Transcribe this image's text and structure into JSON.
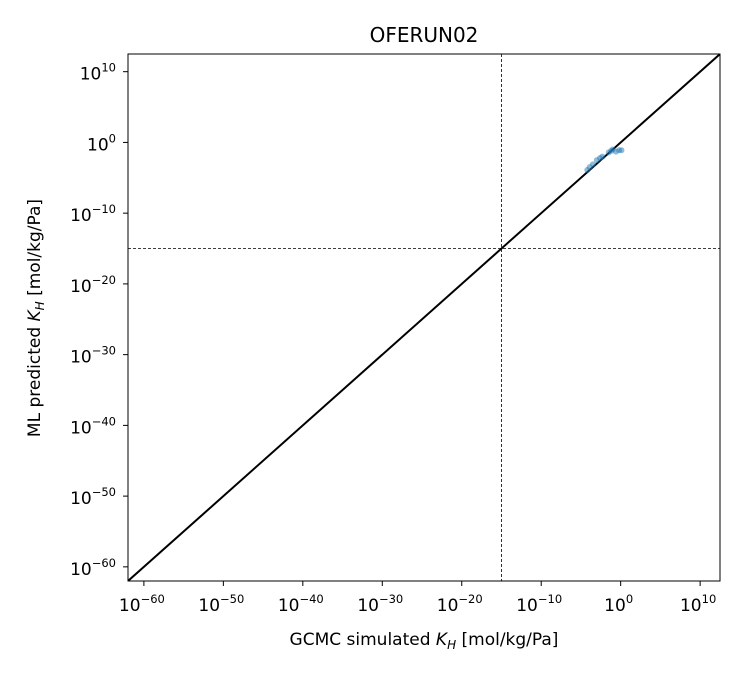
{
  "chart_data": {
    "type": "scatter",
    "title": "OFERUN02",
    "xlabel": {
      "prefix": "GCMC simulated ",
      "symbol": "K",
      "subscript": "H",
      "suffix": " [mol/kg/Pa]"
    },
    "ylabel": {
      "prefix": "ML predicted ",
      "symbol": "K",
      "subscript": "H",
      "suffix": " [mol/kg/Pa]"
    },
    "x_scale": "log",
    "y_scale": "log",
    "xlim_exponent": [
      -62,
      12.5
    ],
    "ylim_exponent": [
      -62,
      12.5
    ],
    "x_ticks": [
      {
        "base": "10",
        "exp": "−60"
      },
      {
        "base": "10",
        "exp": "−50"
      },
      {
        "base": "10",
        "exp": "−40"
      },
      {
        "base": "10",
        "exp": "−30"
      },
      {
        "base": "10",
        "exp": "−20"
      },
      {
        "base": "10",
        "exp": "−10"
      },
      {
        "base": "10",
        "exp": "0"
      },
      {
        "base": "10",
        "exp": "10"
      }
    ],
    "y_ticks": [
      {
        "base": "10",
        "exp": "−60"
      },
      {
        "base": "10",
        "exp": "−50"
      },
      {
        "base": "10",
        "exp": "−40"
      },
      {
        "base": "10",
        "exp": "−30"
      },
      {
        "base": "10",
        "exp": "−20"
      },
      {
        "base": "10",
        "exp": "−10"
      },
      {
        "base": "10",
        "exp": "0"
      },
      {
        "base": "10",
        "exp": "10"
      }
    ],
    "tick_exponents": [
      -60,
      -50,
      -40,
      -30,
      -20,
      -10,
      0,
      10
    ],
    "reference_lines": {
      "x_exponent": -15,
      "y_exponent": -15,
      "style": "dashed"
    },
    "parity_line": true,
    "series": [
      {
        "color": "#1f77b4",
        "x_exponent": [
          -4.2,
          -3.9,
          -3.5,
          -3.0,
          -2.6,
          -2.3,
          -1.5,
          -1.2,
          -1.0,
          -0.6,
          -0.2,
          0.1
        ],
        "y_exponent": [
          -3.9,
          -3.5,
          -3.1,
          -2.5,
          -2.2,
          -2.0,
          -1.4,
          -1.2,
          -1.0,
          -1.3,
          -1.1,
          -1.1
        ]
      }
    ],
    "grid": false
  }
}
